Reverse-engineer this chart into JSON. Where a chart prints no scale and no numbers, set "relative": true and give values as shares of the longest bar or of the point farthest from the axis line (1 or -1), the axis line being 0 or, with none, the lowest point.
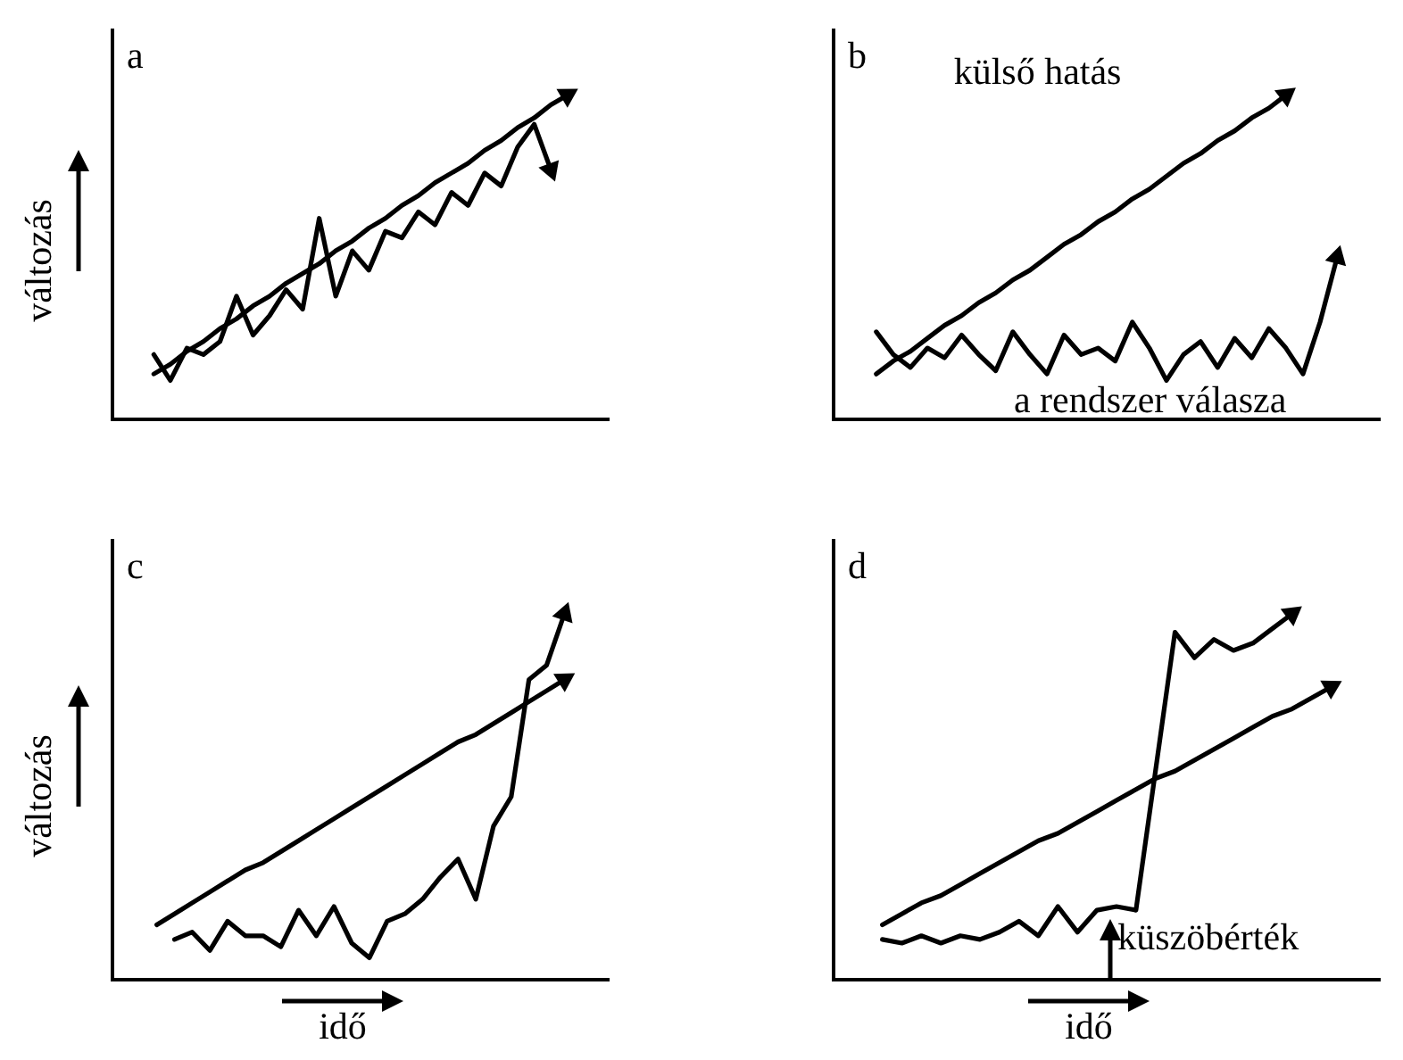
{
  "chart_data": [
    {
      "type": "line",
      "title": "a",
      "ylabel": "változás",
      "relative": true,
      "categories": [
        null,
        null,
        null,
        null,
        null,
        null,
        null,
        null,
        null,
        null,
        null,
        null,
        null,
        null,
        null,
        null,
        null,
        null,
        null,
        null,
        null,
        null,
        null,
        null,
        null,
        null
      ],
      "series": [
        {
          "color": "#000000",
          "values": [
            0.14,
            0.17,
            0.21,
            0.24,
            0.28,
            0.31,
            0.35,
            0.38,
            0.42,
            0.45,
            0.48,
            0.52,
            0.55,
            0.59,
            0.62,
            0.66,
            0.69,
            0.73,
            0.76,
            0.79,
            0.83,
            0.86,
            0.9,
            0.93,
            0.97,
            1
          ]
        },
        {
          "color": "#000000",
          "values": [
            0.2,
            0.12,
            0.22,
            0.2,
            0.24,
            0.38,
            0.26,
            0.32,
            0.4,
            0.34,
            0.62,
            0.38,
            0.52,
            0.46,
            0.58,
            0.56,
            0.64,
            0.6,
            0.7,
            0.66,
            0.76,
            0.72,
            0.84,
            0.91,
            0.77,
            null
          ]
        }
      ]
    },
    {
      "type": "line",
      "title": "b",
      "relative": true,
      "annotations": [
        "külső hatás",
        "a rendszer válasza"
      ],
      "categories": [
        null,
        null,
        null,
        null,
        null,
        null,
        null,
        null,
        null,
        null,
        null,
        null,
        null,
        null,
        null,
        null,
        null,
        null,
        null,
        null,
        null,
        null,
        null,
        null,
        null,
        null,
        null,
        null
      ],
      "series": [
        {
          "color": "#000000",
          "values": [
            0.14,
            0.18,
            0.21,
            0.25,
            0.29,
            0.32,
            0.36,
            0.39,
            0.43,
            0.46,
            0.5,
            0.54,
            0.57,
            0.61,
            0.64,
            0.68,
            0.71,
            0.75,
            0.79,
            0.82,
            0.86,
            0.89,
            0.93,
            0.96,
            1,
            null,
            null,
            null
          ]
        },
        {
          "color": "#000000",
          "values": [
            0.27,
            0.2,
            0.16,
            0.22,
            0.19,
            0.26,
            0.2,
            0.15,
            0.27,
            0.2,
            0.14,
            0.26,
            0.2,
            0.22,
            0.18,
            0.3,
            0.22,
            0.12,
            0.2,
            0.24,
            0.16,
            0.25,
            0.19,
            0.28,
            0.22,
            0.14,
            0.3,
            0.5
          ]
        }
      ]
    },
    {
      "type": "line",
      "title": "c",
      "ylabel": "változás",
      "xlabel": "idő",
      "relative": true,
      "categories": [
        null,
        null,
        null,
        null,
        null,
        null,
        null,
        null,
        null,
        null,
        null,
        null,
        null,
        null,
        null,
        null,
        null,
        null,
        null,
        null,
        null,
        null,
        null,
        null
      ],
      "series": [
        {
          "color": "#000000",
          "values": [
            0.15,
            0.18,
            0.21,
            0.24,
            0.27,
            0.3,
            0.32,
            0.35,
            0.38,
            0.41,
            0.44,
            0.47,
            0.5,
            0.53,
            0.56,
            0.59,
            0.62,
            0.65,
            0.67,
            0.7,
            0.73,
            0.76,
            0.79,
            0.82
          ]
        },
        {
          "color": "#000000",
          "values": [
            null,
            0.11,
            0.13,
            0.08,
            0.16,
            0.12,
            0.12,
            0.09,
            0.19,
            0.12,
            0.2,
            0.1,
            0.06,
            0.16,
            0.18,
            0.22,
            0.28,
            0.33,
            0.22,
            0.42,
            0.5,
            0.82,
            0.86,
            1
          ]
        }
      ]
    },
    {
      "type": "line",
      "title": "d",
      "xlabel": "idő",
      "relative": true,
      "annotations": [
        "küszöbérték"
      ],
      "categories": [
        null,
        null,
        null,
        null,
        null,
        null,
        null,
        null,
        null,
        null,
        null,
        null,
        null,
        null,
        null,
        null,
        null,
        null,
        null,
        null,
        null,
        null,
        null,
        null
      ],
      "series": [
        {
          "color": "#000000",
          "values": [
            0.15,
            0.18,
            0.21,
            0.23,
            0.26,
            0.29,
            0.32,
            0.35,
            0.38,
            0.4,
            0.43,
            0.46,
            0.49,
            0.52,
            0.55,
            0.57,
            0.6,
            0.63,
            0.66,
            0.69,
            0.72,
            0.74,
            0.77,
            0.8
          ]
        },
        {
          "color": "#000000",
          "values": [
            0.11,
            0.1,
            0.12,
            0.1,
            0.12,
            0.11,
            0.13,
            0.16,
            0.12,
            0.2,
            0.13,
            0.19,
            0.2,
            0.19,
            0.57,
            0.95,
            0.88,
            0.93,
            0.9,
            0.92,
            0.96,
            1,
            null,
            null
          ]
        }
      ]
    }
  ]
}
